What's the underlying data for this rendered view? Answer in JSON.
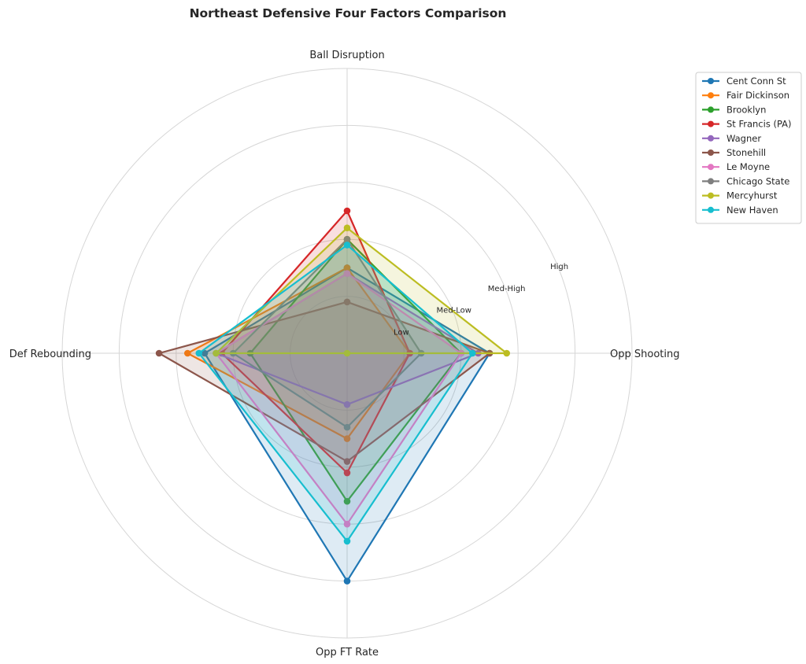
{
  "chart_data": {
    "type": "radar",
    "title": "Northeast Defensive Four Factors Comparison",
    "axes": [
      "Ball Disruption",
      "Opp Shooting",
      "Opp FT Rate",
      "Def Rebounding"
    ],
    "rlim": [
      0,
      5
    ],
    "ring_labels": [
      "Low",
      "Med-Low",
      "Med-High",
      "High"
    ],
    "grid": true,
    "legend_position": "top-right",
    "series": [
      {
        "name": "Cent Conn St",
        "color": "#1f77b4",
        "values": [
          1.5,
          2.5,
          4.0,
          2.5
        ]
      },
      {
        "name": "Fair Dickinson",
        "color": "#ff7f0e",
        "values": [
          1.5,
          1.1,
          1.5,
          2.8
        ]
      },
      {
        "name": "Brooklyn",
        "color": "#2ca02c",
        "values": [
          2.0,
          2.0,
          2.6,
          1.7
        ]
      },
      {
        "name": "St Francis (PA)",
        "color": "#d62728",
        "values": [
          2.5,
          1.1,
          2.1,
          2.2
        ]
      },
      {
        "name": "Wagner",
        "color": "#9467bd",
        "values": [
          1.4,
          2.3,
          0.9,
          2.3
        ]
      },
      {
        "name": "Stonehill",
        "color": "#8c564b",
        "values": [
          0.9,
          2.5,
          1.9,
          3.3
        ]
      },
      {
        "name": "Le Moyne",
        "color": "#e377c2",
        "values": [
          1.4,
          2.0,
          3.0,
          2.3
        ]
      },
      {
        "name": "Chicago State",
        "color": "#7f7f7f",
        "values": [
          2.0,
          1.3,
          1.3,
          2.0
        ]
      },
      {
        "name": "Mercyhurst",
        "color": "#bcbd22",
        "values": [
          2.2,
          2.8,
          0.0,
          2.3
        ]
      },
      {
        "name": "New Haven",
        "color": "#17becf",
        "values": [
          1.9,
          2.2,
          3.3,
          2.6
        ]
      }
    ]
  }
}
